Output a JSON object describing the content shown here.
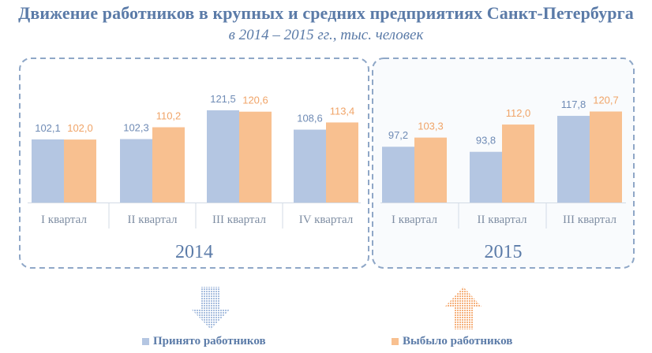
{
  "header": {
    "title": "Движение работников в крупных и средних предприятиях Санкт-Петербурга",
    "subtitle": "в 2014 – 2015 гг., тыс. человек"
  },
  "colors": {
    "hired": "#b4c6e2",
    "left": "#f8c090",
    "hired_label": "#6f8bb5",
    "left_label": "#f0a468",
    "frame": "#8fa7c7",
    "text": "#5b7ba8"
  },
  "legend": {
    "hired_label": "Принято работников",
    "left_label": "Выбыло работников",
    "down_arrow_icon": "arrow-down-icon",
    "up_arrow_icon": "arrow-up-icon"
  },
  "chart_data": {
    "type": "bar",
    "groups": [
      {
        "year": "2014",
        "categories": [
          "I квартал",
          "II квартал",
          "III квартал",
          "IV квартал"
        ]
      },
      {
        "year": "2015",
        "categories": [
          "I квартал",
          "II квартал",
          "III квартал"
        ]
      }
    ],
    "series": [
      {
        "name": "Принято работников",
        "values": [
          102.1,
          102.3,
          121.5,
          108.6,
          97.2,
          93.8,
          117.8
        ],
        "labels": [
          "102,1",
          "102,3",
          "121,5",
          "108,6",
          "97,2",
          "93,8",
          "117,8"
        ]
      },
      {
        "name": "Выбыло работников",
        "values": [
          102.0,
          110.2,
          120.6,
          113.4,
          103.3,
          112.0,
          120.7
        ],
        "labels": [
          "102,0",
          "110,2",
          "120,6",
          "113,4",
          "103,3",
          "112,0",
          "120,7"
        ]
      }
    ],
    "ylim": [
      60,
      125
    ],
    "grid": false
  }
}
